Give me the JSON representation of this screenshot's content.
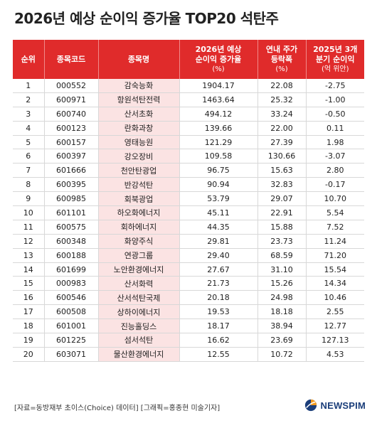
{
  "title": "2026년 예상 순이익 증가율 TOP20 석탄주",
  "headers": {
    "rank": "순위",
    "code": "종목코드",
    "name": "종목명",
    "growth_l1": "2026년 예상",
    "growth_l2": "순이익 증가율",
    "growth_unit": "(%)",
    "price_l1": "연내 주가",
    "price_l2": "등락폭",
    "price_unit": "(%)",
    "q3_l1": "2025년 3개",
    "q3_l2": "분기 순이익",
    "q3_unit": "(억 위안)"
  },
  "rows": [
    {
      "rank": "1",
      "code": "000552",
      "name": "감숙능화",
      "growth": "1904.17",
      "price": "22.08",
      "q3": "-2.75"
    },
    {
      "rank": "2",
      "code": "600971",
      "name": "항원석탄전력",
      "growth": "1463.64",
      "price": "25.32",
      "q3": "-1.00"
    },
    {
      "rank": "3",
      "code": "600740",
      "name": "산서초화",
      "growth": "494.12",
      "price": "33.24",
      "q3": "-0.50"
    },
    {
      "rank": "4",
      "code": "600123",
      "name": "란화과창",
      "growth": "139.66",
      "price": "22.00",
      "q3": "0.11"
    },
    {
      "rank": "5",
      "code": "600157",
      "name": "영태능원",
      "growth": "121.29",
      "price": "27.39",
      "q3": "1.98"
    },
    {
      "rank": "6",
      "code": "600397",
      "name": "강오장비",
      "growth": "109.58",
      "price": "130.66",
      "q3": "-3.07"
    },
    {
      "rank": "7",
      "code": "601666",
      "name": "천안탄광업",
      "growth": "96.75",
      "price": "15.63",
      "q3": "2.80"
    },
    {
      "rank": "8",
      "code": "600395",
      "name": "반강석탄",
      "growth": "90.94",
      "price": "32.83",
      "q3": "-0.17"
    },
    {
      "rank": "9",
      "code": "600985",
      "name": "회북광업",
      "growth": "53.79",
      "price": "29.07",
      "q3": "10.70"
    },
    {
      "rank": "10",
      "code": "601101",
      "name": "하오화에너지",
      "growth": "45.11",
      "price": "22.91",
      "q3": "5.54"
    },
    {
      "rank": "11",
      "code": "600575",
      "name": "회하에너지",
      "growth": "44.35",
      "price": "15.88",
      "q3": "7.52"
    },
    {
      "rank": "12",
      "code": "600348",
      "name": "화양주식",
      "growth": "29.81",
      "price": "23.73",
      "q3": "11.24"
    },
    {
      "rank": "13",
      "code": "600188",
      "name": "연광그룹",
      "growth": "29.40",
      "price": "68.59",
      "q3": "71.20"
    },
    {
      "rank": "14",
      "code": "601699",
      "name": "노안환경에너지",
      "growth": "27.67",
      "price": "31.10",
      "q3": "15.54"
    },
    {
      "rank": "15",
      "code": "000983",
      "name": "산서화력",
      "growth": "21.73",
      "price": "15.26",
      "q3": "14.34"
    },
    {
      "rank": "16",
      "code": "600546",
      "name": "산서석탄국제",
      "growth": "20.18",
      "price": "24.98",
      "q3": "10.46"
    },
    {
      "rank": "17",
      "code": "600508",
      "name": "상하이에너지",
      "growth": "19.53",
      "price": "18.18",
      "q3": "2.55"
    },
    {
      "rank": "18",
      "code": "601001",
      "name": "진능홀딩스",
      "growth": "18.17",
      "price": "38.94",
      "q3": "12.77"
    },
    {
      "rank": "19",
      "code": "601225",
      "name": "섬서석탄",
      "growth": "16.62",
      "price": "23.69",
      "q3": "127.13"
    },
    {
      "rank": "20",
      "code": "603071",
      "name": "물산환경에너지",
      "growth": "12.55",
      "price": "10.72",
      "q3": "4.53"
    }
  ],
  "footer": {
    "source": "[자료=동방재부 초이스(Choice) 데이터] [그래픽=홍종현 미술기자]",
    "logo_text": "NEWSPIM",
    "logo_icon": "newspim-logo-icon",
    "logo_colors": {
      "orange": "#f39a1e",
      "blue": "#1b3e7a"
    }
  },
  "colors": {
    "header_bg": "#e02b2b",
    "name_cell_bg": "#fbe3e3"
  }
}
